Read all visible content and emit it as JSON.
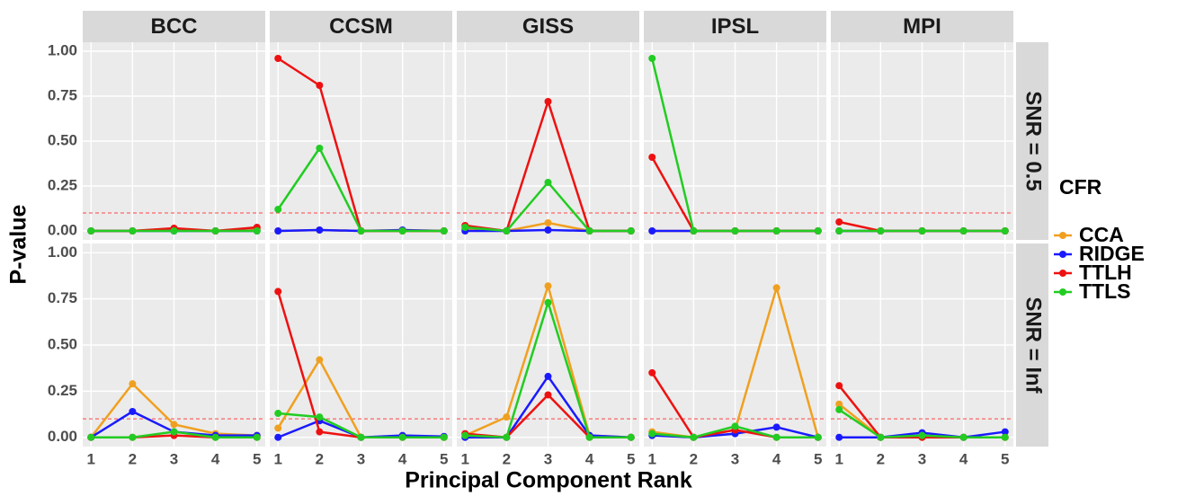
{
  "chart_data": {
    "type": "line",
    "x_label": "Principal Component Rank",
    "y_label": "P-value",
    "legend_title": "CFR",
    "columns": [
      "BCC",
      "CCSM",
      "GISS",
      "IPSL",
      "MPI"
    ],
    "rows": [
      "SNR = 0.5",
      "SNR = Inf"
    ],
    "x": [
      1,
      2,
      3,
      4,
      5
    ],
    "xlim": [
      0.8,
      5.2
    ],
    "xticks": [
      1,
      2,
      3,
      4,
      5
    ],
    "ylim": [
      -0.05,
      1.05
    ],
    "yticks": [
      {
        "value": 0,
        "label": "0.00"
      },
      {
        "value": 0.25,
        "label": "0.25"
      },
      {
        "value": 0.5,
        "label": "0.50"
      },
      {
        "value": 0.75,
        "label": "0.75"
      },
      {
        "value": 1,
        "label": "1.00"
      }
    ],
    "reference_line": 0.1,
    "reference_color": "#ff4444",
    "grid": true,
    "series": [
      {
        "name": "CCA",
        "color": "#f0a020"
      },
      {
        "name": "RIDGE",
        "color": "#1a1aff"
      },
      {
        "name": "TTLH",
        "color": "#ee1111"
      },
      {
        "name": "TTLS",
        "color": "#22cc22"
      }
    ],
    "panels": [
      [
        [
          [
            0,
            0,
            0.01,
            0,
            0.01
          ],
          [
            0,
            0,
            0,
            0,
            0
          ],
          [
            0,
            0,
            0.015,
            0,
            0.02
          ],
          [
            0,
            0,
            0,
            0,
            0
          ]
        ],
        [
          [
            0,
            0.005,
            0,
            0,
            0
          ],
          [
            0,
            0.005,
            0,
            0.005,
            0
          ],
          [
            0.96,
            0.81,
            0,
            0,
            0
          ],
          [
            0.12,
            0.46,
            0,
            0,
            0
          ]
        ],
        [
          [
            0.01,
            0,
            0.045,
            0,
            0
          ],
          [
            0,
            0,
            0.005,
            0,
            0
          ],
          [
            0.03,
            0,
            0.72,
            0,
            0
          ],
          [
            0.02,
            0,
            0.27,
            0,
            0
          ]
        ],
        [
          [
            0,
            0,
            0,
            0,
            0
          ],
          [
            0,
            0,
            0,
            0,
            0
          ],
          [
            0.41,
            0,
            0,
            0,
            0
          ],
          [
            0.96,
            0,
            0,
            0,
            0
          ]
        ],
        [
          [
            0,
            0,
            0,
            0,
            0
          ],
          [
            0,
            0,
            0,
            0,
            0
          ],
          [
            0.05,
            0,
            0,
            0,
            0
          ],
          [
            0,
            0,
            0,
            0,
            0
          ]
        ]
      ],
      [
        [
          [
            0,
            0.29,
            0.07,
            0.02,
            0.01
          ],
          [
            0,
            0.14,
            0.03,
            0.01,
            0.01
          ],
          [
            0,
            0,
            0.01,
            0,
            0
          ],
          [
            0,
            0,
            0.03,
            0,
            0
          ]
        ],
        [
          [
            0.05,
            0.42,
            0,
            0,
            0
          ],
          [
            0,
            0.09,
            0,
            0.01,
            0.005
          ],
          [
            0.79,
            0.03,
            0,
            0,
            0
          ],
          [
            0.13,
            0.11,
            0,
            0,
            0
          ]
        ],
        [
          [
            0.01,
            0.11,
            0.82,
            0.01,
            0
          ],
          [
            0,
            0,
            0.33,
            0.01,
            0
          ],
          [
            0.02,
            0,
            0.23,
            0,
            0
          ],
          [
            0.01,
            0,
            0.73,
            0,
            0
          ]
        ],
        [
          [
            0.03,
            0,
            0.04,
            0.81,
            0
          ],
          [
            0.01,
            0,
            0.02,
            0.055,
            0
          ],
          [
            0.35,
            0,
            0.04,
            0,
            0
          ],
          [
            0.02,
            0,
            0.06,
            0,
            0
          ]
        ],
        [
          [
            0.18,
            0,
            0,
            0,
            0
          ],
          [
            0,
            0,
            0.025,
            0,
            0.03
          ],
          [
            0.28,
            0,
            0,
            0,
            0
          ],
          [
            0.15,
            0,
            0.01,
            0,
            0
          ]
        ]
      ]
    ]
  }
}
